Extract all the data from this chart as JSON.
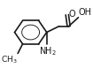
{
  "bg_color": "#ffffff",
  "line_color": "#1a1a1a",
  "line_width": 1.2,
  "text_color": "#1a1a1a",
  "font_size": 7
}
